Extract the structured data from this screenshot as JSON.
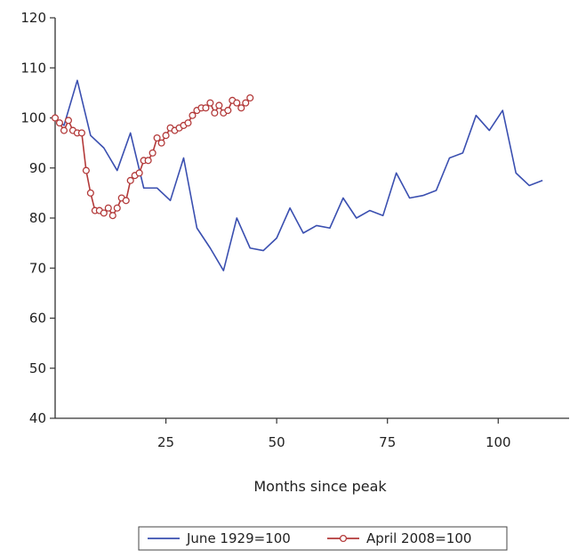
{
  "chart_data": {
    "type": "line",
    "title": "",
    "xlabel": "Months since peak",
    "ylabel": "",
    "xlim": [
      0,
      116
    ],
    "ylim": [
      40,
      120
    ],
    "xticks": [
      25,
      50,
      75,
      100
    ],
    "yticks": [
      40,
      50,
      60,
      70,
      80,
      90,
      100,
      110,
      120
    ],
    "grid": false,
    "legend": "bottom",
    "series": [
      {
        "name": "June 1929=100",
        "color": "#3a4fb0",
        "marker": "none",
        "points": [
          [
            0,
            100
          ],
          [
            2,
            98.5
          ],
          [
            5,
            107.5
          ],
          [
            8,
            96.5
          ],
          [
            11,
            94
          ],
          [
            14,
            89.5
          ],
          [
            17,
            97
          ],
          [
            20,
            86
          ],
          [
            23,
            86
          ],
          [
            26,
            83.5
          ],
          [
            29,
            92
          ],
          [
            32,
            78
          ],
          [
            35,
            74
          ],
          [
            38,
            69.5
          ],
          [
            41,
            80
          ],
          [
            44,
            74
          ],
          [
            47,
            73.5
          ],
          [
            50,
            76
          ],
          [
            53,
            82
          ],
          [
            56,
            77
          ],
          [
            59,
            78.5
          ],
          [
            62,
            78
          ],
          [
            65,
            84
          ],
          [
            68,
            80
          ],
          [
            71,
            81.5
          ],
          [
            74,
            80.5
          ],
          [
            77,
            89
          ],
          [
            80,
            84
          ],
          [
            83,
            84.5
          ],
          [
            86,
            85.5
          ],
          [
            89,
            92
          ],
          [
            92,
            93
          ],
          [
            95,
            100.5
          ],
          [
            98,
            97.5
          ],
          [
            101,
            101.5
          ],
          [
            104,
            89
          ],
          [
            107,
            86.5
          ],
          [
            110,
            87.5
          ]
        ]
      },
      {
        "name": "April 2008=100",
        "color": "#b33a3a",
        "marker": "circle",
        "points": [
          [
            0,
            100
          ],
          [
            1,
            99
          ],
          [
            2,
            97.5
          ],
          [
            3,
            99.5
          ],
          [
            4,
            97.5
          ],
          [
            5,
            97
          ],
          [
            6,
            97
          ],
          [
            7,
            89.5
          ],
          [
            8,
            85
          ],
          [
            9,
            81.5
          ],
          [
            10,
            81.5
          ],
          [
            11,
            81
          ],
          [
            12,
            82
          ],
          [
            13,
            80.5
          ],
          [
            14,
            82
          ],
          [
            15,
            84
          ],
          [
            16,
            83.5
          ],
          [
            17,
            87.5
          ],
          [
            18,
            88.5
          ],
          [
            19,
            89
          ],
          [
            20,
            91.5
          ],
          [
            21,
            91.5
          ],
          [
            22,
            93
          ],
          [
            23,
            96
          ],
          [
            24,
            95
          ],
          [
            25,
            96.5
          ],
          [
            26,
            98
          ],
          [
            27,
            97.5
          ],
          [
            28,
            98
          ],
          [
            29,
            98.5
          ],
          [
            30,
            99
          ],
          [
            31,
            100.5
          ],
          [
            32,
            101.5
          ],
          [
            33,
            102
          ],
          [
            34,
            102
          ],
          [
            35,
            103
          ],
          [
            36,
            101
          ],
          [
            37,
            102.5
          ],
          [
            38,
            101
          ],
          [
            39,
            101.5
          ],
          [
            40,
            103.5
          ],
          [
            41,
            103
          ],
          [
            42,
            102
          ],
          [
            43,
            103
          ],
          [
            44,
            104
          ]
        ]
      }
    ]
  }
}
